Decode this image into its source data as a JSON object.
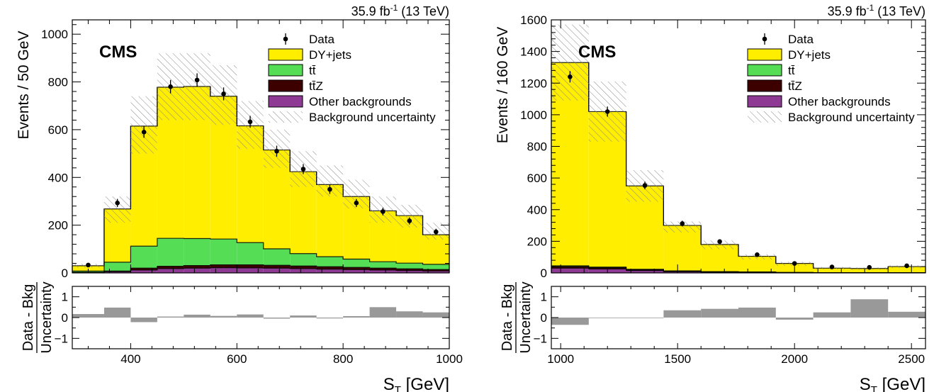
{
  "chart_data": [
    {
      "type": "bar",
      "stacked": true,
      "lumi_label": "35.9 fb",
      "lumi_exp": "-1",
      "energy_label": " (13 TeV)",
      "experiment": "CMS",
      "ylabel": "Events / 50 GeV",
      "xlabel": "S",
      "xlabel_sub": "T",
      "xlabel_unit": " [GeV]",
      "ratio_ylabel_num": "Data - Bkg",
      "ratio_ylabel_den": "Uncertainty",
      "xlim": [
        290,
        1000
      ],
      "ylim": [
        0,
        1060
      ],
      "ratio_ylim": [
        -1.5,
        1.5
      ],
      "x_ticks": [
        400,
        600,
        800,
        1000
      ],
      "x_tick_labels": [
        "400",
        "600",
        "800",
        "1000"
      ],
      "y_ticks": [
        0,
        200,
        400,
        600,
        800,
        1000
      ],
      "y_tick_labels": [
        "0",
        "200",
        "400",
        "600",
        "800",
        "1000"
      ],
      "ratio_ticks": [
        -1,
        0,
        1
      ],
      "ratio_tick_labels": [
        "−1",
        "0",
        "1"
      ],
      "bin_edges": [
        290,
        350,
        400,
        450,
        500,
        550,
        600,
        650,
        700,
        750,
        800,
        850,
        900,
        950,
        1000
      ],
      "series": [
        {
          "name": "Other backgrounds",
          "color": "#8e3a95",
          "values": [
            2,
            5,
            12,
            18,
            20,
            22,
            21,
            20,
            18,
            16,
            14,
            12,
            10,
            8
          ]
        },
        {
          "name": "tt̄Z",
          "color": "#3d0000",
          "values": [
            1,
            3,
            8,
            10,
            11,
            12,
            13,
            12,
            11,
            10,
            9,
            8,
            7,
            6
          ]
        },
        {
          "name": "tt̄",
          "color": "#55dd55",
          "values": [
            5,
            37,
            92,
            117,
            113,
            108,
            93,
            69,
            52,
            42,
            35,
            27,
            24,
            22
          ]
        },
        {
          "name": "DY+jets",
          "color": "#ffee00",
          "values": [
            22,
            223,
            503,
            633,
            637,
            598,
            489,
            414,
            343,
            302,
            262,
            213,
            199,
            124
          ]
        }
      ],
      "uncertainty_band": {
        "label": "Background uncertainty",
        "low": [
          22,
          210,
          500,
          640,
          640,
          620,
          520,
          440,
          360,
          320,
          270,
          210,
          190,
          140
        ],
        "high": [
          38,
          320,
          740,
          920,
          920,
          870,
          720,
          600,
          510,
          450,
          390,
          320,
          285,
          210
        ]
      },
      "data": {
        "label": "Data",
        "x": [
          320,
          375,
          425,
          475,
          525,
          575,
          625,
          675,
          725,
          775,
          825,
          875,
          925,
          975
        ],
        "y": [
          33,
          293,
          590,
          780,
          808,
          750,
          633,
          510,
          435,
          350,
          293,
          257,
          218,
          172
        ],
        "err": [
          6,
          17,
          24,
          28,
          28,
          27,
          25,
          23,
          21,
          19,
          17,
          16,
          15,
          13
        ]
      },
      "ratio": [
        0.17,
        0.48,
        -0.22,
        0.05,
        0.14,
        0.08,
        0.15,
        -0.05,
        0.1,
        -0.04,
        0.07,
        0.5,
        0.3,
        0.25
      ]
    },
    {
      "type": "bar",
      "stacked": true,
      "lumi_label": "35.9 fb",
      "lumi_exp": "-1",
      "energy_label": " (13 TeV)",
      "experiment": "CMS",
      "ylabel": "Events / 160 GeV",
      "xlabel": "S",
      "xlabel_sub": "T",
      "xlabel_unit": " [GeV]",
      "ratio_ylabel_num": "Data - Bkg",
      "ratio_ylabel_den": "Uncertainty",
      "xlim": [
        960,
        2560
      ],
      "ylim": [
        0,
        1600
      ],
      "ratio_ylim": [
        -1.5,
        1.5
      ],
      "x_ticks": [
        1000,
        1500,
        2000,
        2500
      ],
      "x_tick_labels": [
        "1000",
        "1500",
        "2000",
        "2500"
      ],
      "y_ticks": [
        0,
        200,
        400,
        600,
        800,
        1000,
        1200,
        1400,
        1600
      ],
      "y_tick_labels": [
        "0",
        "200",
        "400",
        "600",
        "800",
        "1000",
        "1200",
        "1400",
        "1600"
      ],
      "ratio_ticks": [
        -1,
        0,
        1
      ],
      "ratio_tick_labels": [
        "−1",
        "0",
        "1"
      ],
      "bin_edges": [
        960,
        1120,
        1280,
        1440,
        1600,
        1760,
        1920,
        2080,
        2240,
        2400,
        2560
      ],
      "series": [
        {
          "name": "Other backgrounds",
          "color": "#8e3a95",
          "values": [
            30,
            25,
            15,
            8,
            5,
            4,
            2,
            1,
            1,
            1
          ]
        },
        {
          "name": "tt̄Z",
          "color": "#3d0000",
          "values": [
            10,
            8,
            5,
            3,
            2,
            1,
            1,
            0,
            0,
            0
          ]
        },
        {
          "name": "tt̄",
          "color": "#55dd55",
          "values": [
            5,
            4,
            3,
            2,
            1,
            1,
            0,
            0,
            0,
            0
          ]
        },
        {
          "name": "DY+jets",
          "color": "#ffee00",
          "values": [
            1285,
            983,
            527,
            287,
            172,
            99,
            57,
            29,
            27,
            39
          ]
        }
      ],
      "uncertainty_band": {
        "label": "Background uncertainty",
        "low": [
          1090,
          830,
          450,
          255,
          150,
          85,
          45,
          22,
          20,
          30
        ],
        "high": [
          1570,
          1210,
          650,
          325,
          205,
          118,
          70,
          38,
          35,
          48
        ]
      },
      "data": {
        "label": "Data",
        "x": [
          1040,
          1200,
          1360,
          1520,
          1680,
          1840,
          2000,
          2160,
          2320,
          2480
        ],
        "y": [
          1240,
          1020,
          553,
          312,
          198,
          115,
          60,
          38,
          35,
          45
        ],
        "err": [
          36,
          32,
          24,
          18,
          14,
          11,
          8,
          6,
          6,
          7
        ]
      },
      "ratio": [
        -0.35,
        0.0,
        0.0,
        0.35,
        0.42,
        0.48,
        -0.1,
        0.25,
        0.88,
        0.28
      ]
    }
  ]
}
